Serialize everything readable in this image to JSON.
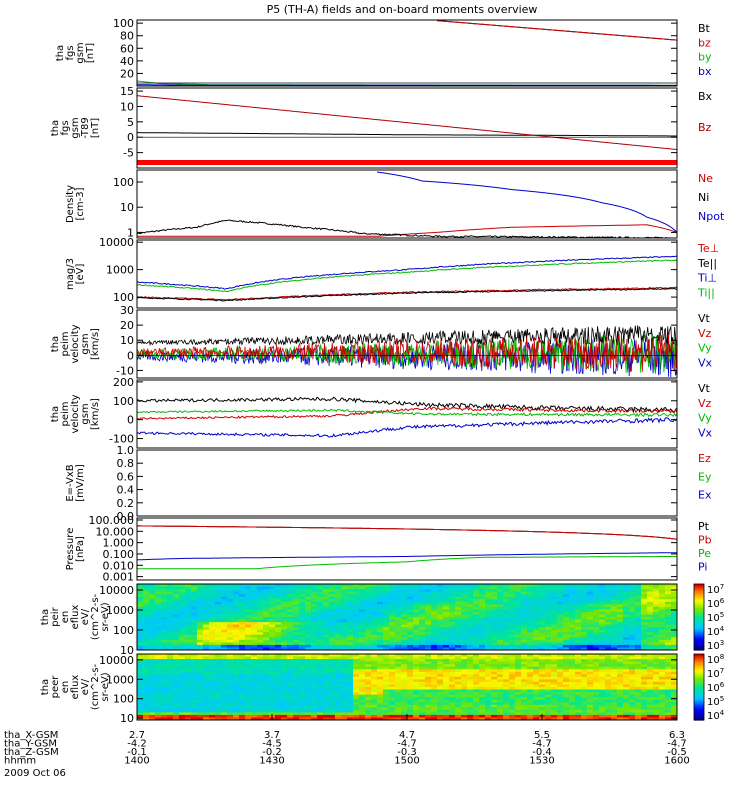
{
  "title": "P5 (TH-A) fields and on-board moments overview",
  "chart_data": [
    {
      "type": "line",
      "panel": "fgs",
      "ylabel": [
        "tha",
        "fgs",
        "gsm",
        "[nT]"
      ],
      "yticks": [
        "100",
        "80",
        "60",
        "40",
        "20"
      ],
      "ylim": [
        0,
        105
      ],
      "series": [
        {
          "name": "Bt",
          "color": "#000000",
          "x": [
            4.7,
            6.3
          ],
          "values": [
            104,
            73
          ]
        },
        {
          "name": "bz",
          "color": "#cc0000",
          "x": [
            4.7,
            6.3
          ],
          "values": [
            104,
            73
          ]
        },
        {
          "name": "by",
          "color": "#00bb00",
          "x": [
            2.7,
            2.85,
            3.2,
            6.3
          ],
          "values": [
            8,
            4,
            2,
            1
          ]
        },
        {
          "name": "bx",
          "color": "#0000cc",
          "x": [
            2.7,
            3.0,
            4.0,
            6.3
          ],
          "values": [
            2,
            1.5,
            1.5,
            1
          ]
        }
      ]
    },
    {
      "type": "line",
      "panel": "fgs-t89",
      "ylabel": [
        "tha",
        "fgs",
        "gsm",
        "-T89",
        "[nT]"
      ],
      "yticks": [
        "15",
        "10",
        "5",
        "0",
        "-5"
      ],
      "ylim": [
        -10,
        16
      ],
      "series": [
        {
          "name": "Bx",
          "color": "#000000",
          "x": [
            2.7,
            3.5,
            4.5,
            5.5,
            6.3
          ],
          "values": [
            1.5,
            1.2,
            0.8,
            0.6,
            0.4
          ]
        },
        {
          "name": "Bz",
          "color": "#aa0000",
          "x": [
            2.7,
            6.3
          ],
          "values": [
            13.5,
            -4
          ]
        }
      ]
    },
    {
      "type": "line",
      "panel": "density",
      "ylabel": [
        "Density",
        "[cm-3]"
      ],
      "yticks": [
        "100",
        "10",
        "1"
      ],
      "ylog": true,
      "ylim": [
        0.6,
        300
      ],
      "series": [
        {
          "name": "Ne",
          "color": "#cc0000",
          "x": [
            2.7,
            4.3,
            4.7,
            5.2,
            6.1,
            6.3
          ],
          "values": [
            0.7,
            0.7,
            1.0,
            1.6,
            2.0,
            1.0
          ]
        },
        {
          "name": "Ni",
          "color": "#000000",
          "x": [
            2.7,
            3.1,
            3.3,
            3.8,
            4.2,
            4.7,
            6.3
          ],
          "values": [
            0.9,
            1.6,
            3.0,
            1.6,
            0.9,
            0.7,
            0.6
          ]
        },
        {
          "name": "Npot",
          "color": "#0000cc",
          "x": [
            4.3,
            4.6,
            5.2,
            5.8,
            6.1,
            6.3
          ],
          "values": [
            250,
            110,
            50,
            15,
            4,
            1
          ]
        }
      ]
    },
    {
      "type": "line",
      "panel": "temperature",
      "ylabel": [
        "mag/3",
        "[eV]"
      ],
      "yticks": [
        "10000",
        "1000",
        "100"
      ],
      "ylog": true,
      "ylim": [
        40,
        12000
      ],
      "series": [
        {
          "name": "Te⊥",
          "color": "#cc0000",
          "x": [
            2.7,
            3.3,
            4.5,
            6.3
          ],
          "values": [
            100,
            80,
            150,
            220
          ]
        },
        {
          "name": "Te||",
          "color": "#000000",
          "x": [
            2.7,
            3.3,
            4.5,
            6.3
          ],
          "values": [
            95,
            75,
            140,
            200
          ]
        },
        {
          "name": "Ti⊥",
          "color": "#0000cc",
          "x": [
            2.7,
            3.3,
            4.5,
            6.3
          ],
          "values": [
            350,
            200,
            1000,
            3000
          ]
        },
        {
          "name": "Ti||",
          "color": "#00bb00",
          "x": [
            2.7,
            3.3,
            4.5,
            6.3
          ],
          "values": [
            280,
            160,
            800,
            2200
          ]
        }
      ]
    },
    {
      "type": "line",
      "panel": "peim-velocity-small",
      "ylabel": [
        "tha",
        "peim",
        "velocity",
        "gsm",
        "[km/s]"
      ],
      "yticks": [
        "30",
        "20",
        "10",
        "0",
        "-10"
      ],
      "ylim": [
        -15,
        30
      ],
      "series": [
        {
          "name": "Vt",
          "color": "#000000"
        },
        {
          "name": "Vz",
          "color": "#cc0000"
        },
        {
          "name": "Vy",
          "color": "#00bb00"
        },
        {
          "name": "Vx",
          "color": "#0000cc"
        }
      ]
    },
    {
      "type": "line",
      "panel": "peim-velocity-large",
      "ylabel": [
        "tha",
        "peim",
        "velocity",
        "gsm",
        "[km/s]"
      ],
      "yticks": [
        "200",
        "100",
        "0",
        "-100"
      ],
      "ylim": [
        -150,
        210
      ],
      "series": [
        {
          "name": "Vt",
          "color": "#000000",
          "x": [
            2.7,
            4.0,
            4.6,
            5.5,
            6.3
          ],
          "values": [
            100,
            110,
            80,
            60,
            50
          ]
        },
        {
          "name": "Vz",
          "color": "#cc0000",
          "x": [
            2.7,
            4.0,
            4.6,
            5.5,
            6.3
          ],
          "values": [
            5,
            20,
            60,
            50,
            45
          ]
        },
        {
          "name": "Vy",
          "color": "#00bb00",
          "x": [
            2.7,
            4.0,
            4.6,
            6.3
          ],
          "values": [
            40,
            50,
            30,
            25
          ]
        },
        {
          "name": "Vx",
          "color": "#0000cc",
          "x": [
            2.7,
            4.0,
            4.5,
            5.5,
            6.3
          ],
          "values": [
            -70,
            -85,
            -40,
            -15,
            0
          ]
        }
      ]
    },
    {
      "type": "line",
      "panel": "e-field",
      "ylabel": [
        "E=-VxB",
        "[mV/m]"
      ],
      "yticks": [
        "1.0",
        "0.8",
        "0.6",
        "0.4",
        "0.2",
        "0.0"
      ],
      "ylim": [
        0,
        1
      ],
      "series": [
        {
          "name": "Ez",
          "color": "#cc0000"
        },
        {
          "name": "Ey",
          "color": "#00bb00"
        },
        {
          "name": "Ex",
          "color": "#0000cc"
        }
      ]
    },
    {
      "type": "line",
      "panel": "pressure",
      "ylabel": [
        "Pressure",
        "[nPa]"
      ],
      "yticks": [
        "100.000",
        "10.000",
        "1.000",
        "0.100",
        "0.010",
        "0.001"
      ],
      "ylog": true,
      "ylim": [
        0.0005,
        150
      ],
      "series": [
        {
          "name": "Pt",
          "color": "#000000",
          "x": [
            2.7,
            6.3
          ],
          "values": [
            30,
            2
          ]
        },
        {
          "name": "Pb",
          "color": "#cc0000",
          "x": [
            2.7,
            6.3
          ],
          "values": [
            30,
            2
          ]
        },
        {
          "name": "Pe",
          "color": "#00bb00",
          "x": [
            2.7,
            3.5,
            4.5,
            5.0,
            6.3
          ],
          "values": [
            0.005,
            0.005,
            0.02,
            0.05,
            0.06
          ]
        },
        {
          "name": "Pi",
          "color": "#0000cc",
          "x": [
            2.7,
            3.0,
            4.5,
            6.3
          ],
          "values": [
            0.03,
            0.04,
            0.06,
            0.13
          ]
        }
      ]
    },
    {
      "type": "heatmap",
      "panel": "peir-eflux",
      "ylabel": [
        "tha",
        "peir",
        "en",
        "eflux",
        "eV/",
        "(cm^2-s-",
        "sr-eV)"
      ],
      "yticks": [
        "10000",
        "1000",
        "100",
        "10"
      ],
      "ylog": true,
      "ylim": [
        10,
        20000
      ],
      "colorbar": {
        "min_exp": 3,
        "max_exp": 7,
        "ticks": [
          "10^7",
          "10^6",
          "10^5",
          "10^4",
          "10^3"
        ]
      }
    },
    {
      "type": "heatmap",
      "panel": "peer-eflux",
      "ylabel": [
        "tha",
        "peer",
        "en",
        "eflux",
        "eV/",
        "(cm^2-s-",
        "sr-eV)"
      ],
      "yticks": [
        "10000",
        "1000",
        "100",
        "10"
      ],
      "ylog": true,
      "ylim": [
        8,
        20000
      ],
      "colorbar": {
        "min_exp": 4,
        "max_exp": 8,
        "ticks": [
          "10^8",
          "10^7",
          "10^6",
          "10^5",
          "10^4"
        ]
      }
    }
  ],
  "xaxis": {
    "rows": [
      {
        "label": "tha_X-GSM",
        "values": [
          "2.7",
          "3.7",
          "4.7",
          "5.5",
          "6.3"
        ]
      },
      {
        "label": "tha_Y-GSM",
        "values": [
          "-4.2",
          "-4.5",
          "-4.7",
          "-4.7",
          "-4.7"
        ]
      },
      {
        "label": "tha_Z-GSM",
        "values": [
          "-0.1",
          "-0.2",
          "-0.3",
          "-0.4",
          "-0.5"
        ]
      },
      {
        "label": "hhmm",
        "values": [
          "1400",
          "1430",
          "1500",
          "1530",
          "1600"
        ]
      }
    ],
    "date": "2009 Oct 06"
  }
}
